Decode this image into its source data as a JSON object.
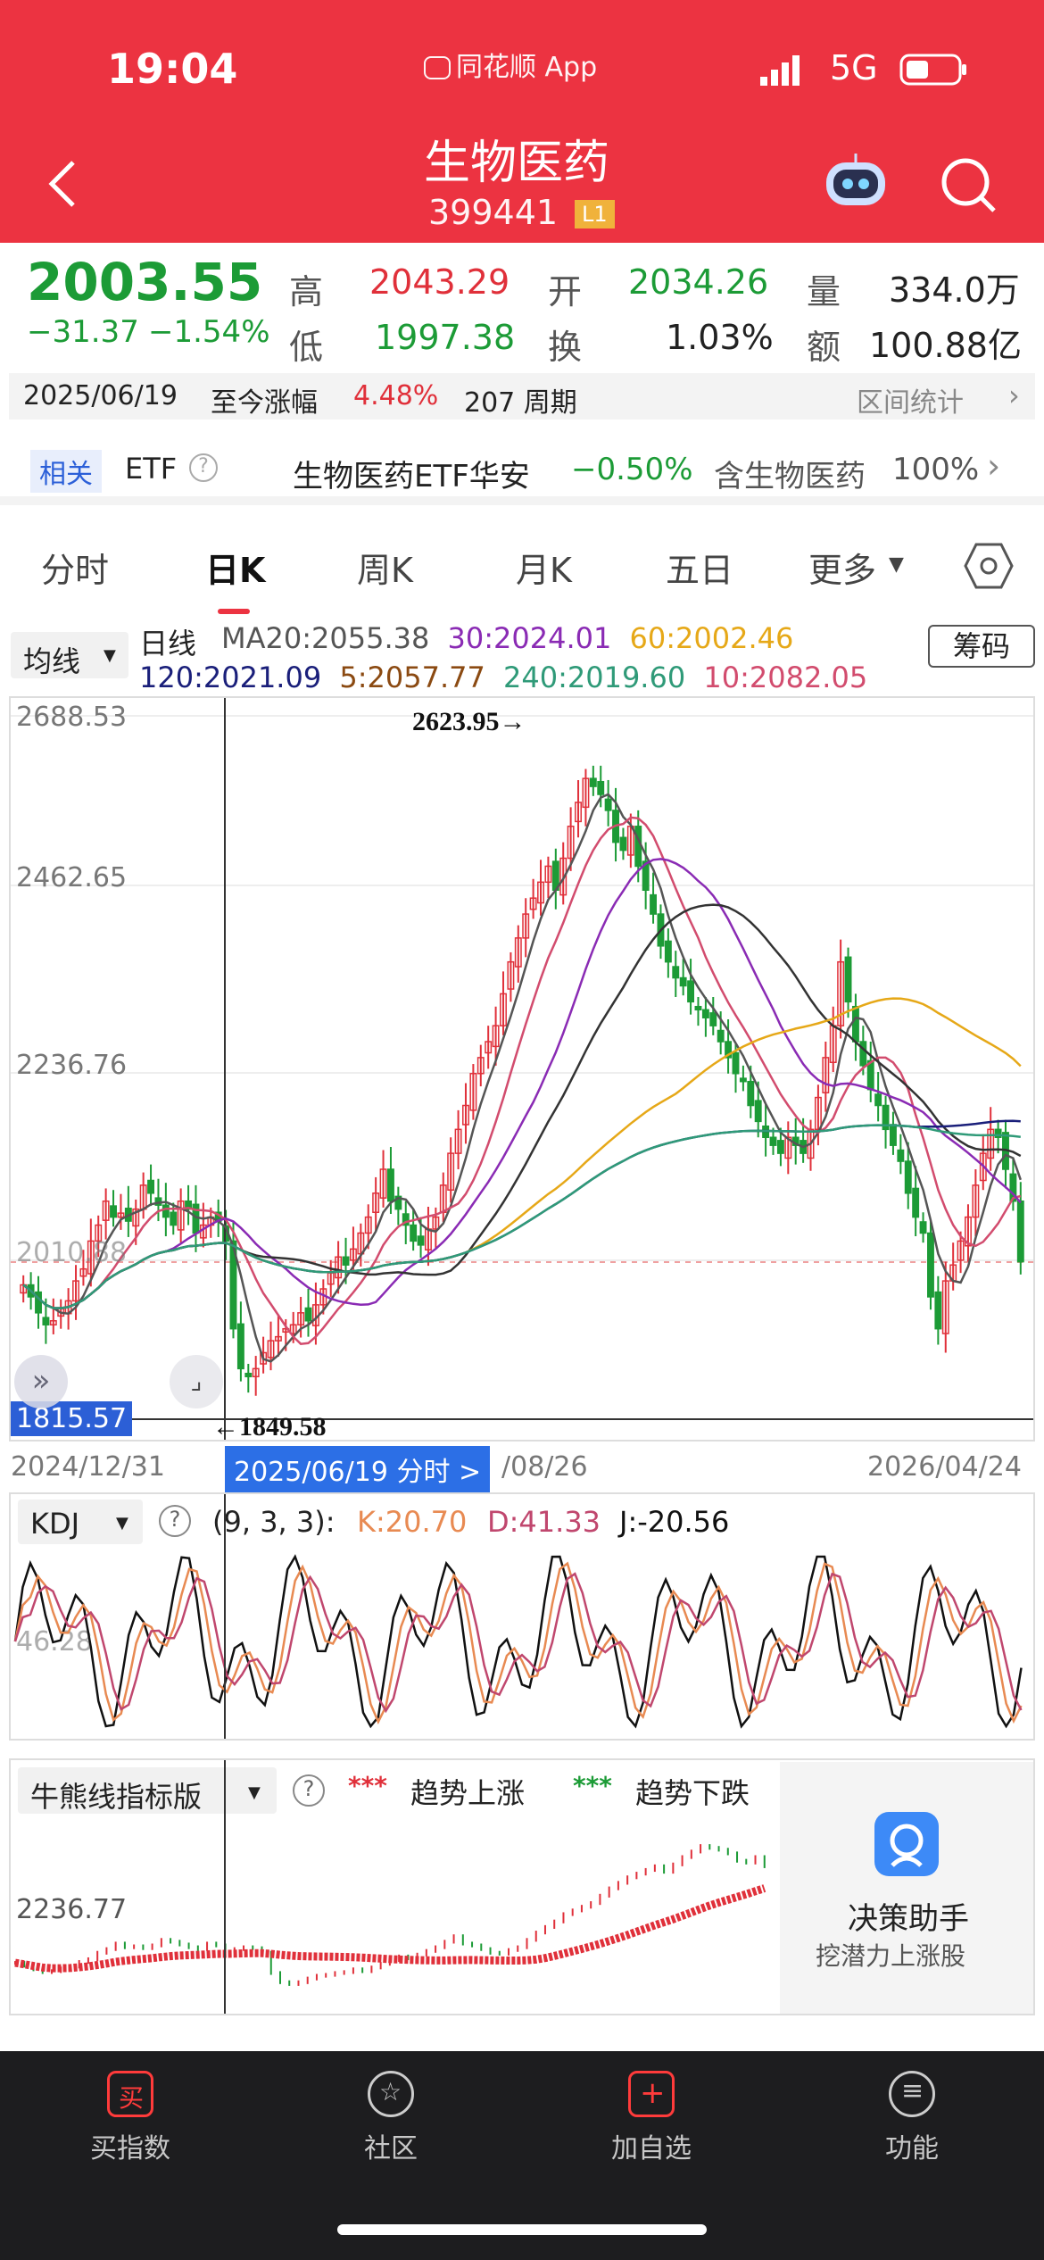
{
  "status_bar": {
    "time": "19:04",
    "app_label": "同花顺 App",
    "network": "5G"
  },
  "header": {
    "title": "生物医药",
    "code": "399441",
    "level_badge": "L1"
  },
  "quote": {
    "price": "2003.55",
    "change": "−31.37",
    "change_pct": "−1.54%",
    "high_label": "高",
    "high": "2043.29",
    "low_label": "低",
    "low": "1997.38",
    "open_label": "开",
    "open": "2034.26",
    "turnover_label": "换",
    "turnover": "1.03%",
    "volume_label": "量",
    "volume": "334.0万",
    "amount_label": "额",
    "amount": "100.88亿",
    "range_text_date": "2025/06/19",
    "range_text_label": "至今涨幅",
    "range_pct": "4.48%",
    "range_period": "207 周期",
    "range_stats": "区间统计"
  },
  "etf": {
    "tag": "相关",
    "type": "ETF",
    "name": "生物医药ETF华安",
    "change": "−0.50%",
    "contain_label": "含生物医药",
    "contain_pct": "100%"
  },
  "tabs": [
    "分时",
    "日K",
    "周K",
    "月K",
    "五日",
    "更多"
  ],
  "active_tab": "日K",
  "ma": {
    "dropdown": "均线",
    "label": "日线",
    "chips_button": "筹码",
    "row1": [
      {
        "t": "MA20:2055.38",
        "c": "#555555"
      },
      {
        "t": "30:2024.01",
        "c": "#8a2bb4"
      },
      {
        "t": "60:2002.46",
        "c": "#e6a818"
      }
    ],
    "row2": [
      {
        "t": "120:2021.09",
        "c": "#1a1f7a"
      },
      {
        "t": "5:2057.77",
        "c": "#8b4a12"
      },
      {
        "t": "240:2019.60",
        "c": "#2f9a78"
      },
      {
        "t": "10:2082.05",
        "c": "#d24c6e"
      }
    ]
  },
  "chart_data": {
    "type": "candlestick",
    "y_ticks": [
      "2688.53",
      "2462.65",
      "2236.76",
      "2010.88"
    ],
    "current_low_label": "1815.57",
    "max_annotation": "2623.95→",
    "min_annotation": "←1849.58",
    "x_labels": [
      "2024/12/31",
      "/08/26",
      "2026/04/24"
    ],
    "crosshair_label": "2025/06/19 分时 >",
    "ylim": [
      1815.57,
      2688.53
    ],
    "close_path": [
      1975,
      1960,
      1940,
      1925,
      1930,
      1945,
      1955,
      1980,
      1995,
      2030,
      2050,
      2080,
      2060,
      2065,
      2055,
      2070,
      2100,
      2090,
      2075,
      2060,
      2050,
      2080,
      2070,
      2040,
      2050,
      2060,
      2055,
      2030,
      1920,
      1870,
      1860,
      1870,
      1890,
      1905,
      1910,
      1920,
      1925,
      1940,
      1930,
      1950,
      1970,
      1990,
      2010,
      2000,
      2020,
      2040,
      2060,
      2090,
      2120,
      2080,
      2070,
      2050,
      2030,
      2025,
      2045,
      2060,
      2100,
      2140,
      2170,
      2200,
      2240,
      2260,
      2280,
      2300,
      2340,
      2380,
      2410,
      2440,
      2460,
      2480,
      2500,
      2470,
      2510,
      2550,
      2580,
      2610,
      2600,
      2590,
      2570,
      2530,
      2520,
      2550,
      2500,
      2470,
      2440,
      2400,
      2380,
      2360,
      2350,
      2330,
      2320,
      2310,
      2300,
      2280,
      2260,
      2240,
      2230,
      2200,
      2180,
      2160,
      2150,
      2140,
      2160,
      2150,
      2140,
      2170,
      2210,
      2260,
      2300,
      2380,
      2330,
      2280,
      2250,
      2220,
      2200,
      2170,
      2150,
      2130,
      2090,
      2060,
      2040,
      1960,
      1920,
      1980,
      2000,
      2030,
      2060,
      2100,
      2140,
      2170,
      2160,
      2120,
      2080,
      2004
    ],
    "kdj": {
      "params": "(9, 3, 3):",
      "k": "K:20.70",
      "d": "D:41.33",
      "j": "J:-20.56",
      "tick": "46.28"
    },
    "bull_bear": {
      "name": "牛熊线指标版",
      "up": "趋势上涨",
      "down": "趋势下跌",
      "tick": "2236.77"
    }
  },
  "promo": {
    "title": "决策助手",
    "subtitle": "挖潜力上涨股"
  },
  "bottom_nav": [
    "买指数",
    "社区",
    "加自选",
    "功能"
  ],
  "colors": {
    "red": "#ec3341",
    "up": "#e0303a",
    "down": "#1c9b36"
  }
}
